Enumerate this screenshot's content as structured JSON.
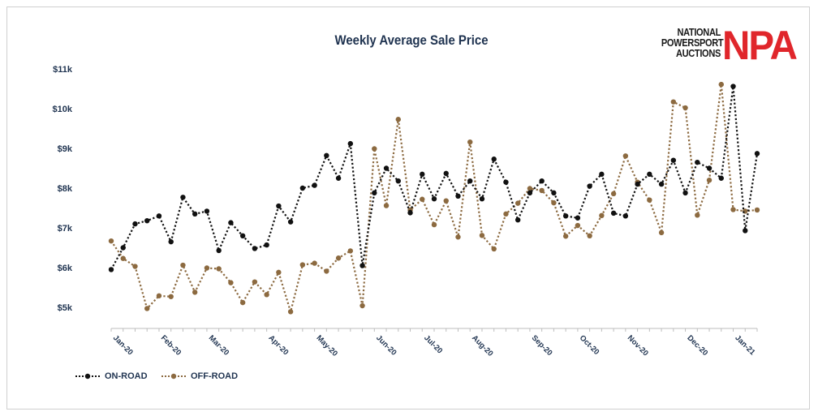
{
  "logo": {
    "line1": "NATIONAL",
    "line2": "POWERSPORT",
    "line3": "AUCTIONS",
    "mark": "NPA",
    "mark_color": "#e0262b"
  },
  "colors": {
    "on_road": "#111111",
    "off_road": "#8c6a40",
    "axis_text": "#1f3350"
  },
  "chart_data": {
    "type": "line",
    "title": "Weekly Average Sale Price",
    "xlabel": "",
    "ylabel": "",
    "ylim": [
      4700,
      11000
    ],
    "y_ticks": [
      {
        "value": 11000,
        "label": "$11k"
      },
      {
        "value": 10000,
        "label": "$10k"
      },
      {
        "value": 9000,
        "label": "$9k"
      },
      {
        "value": 8000,
        "label": "$8k"
      },
      {
        "value": 7000,
        "label": "$7k"
      },
      {
        "value": 6000,
        "label": "$6k"
      },
      {
        "value": 5000,
        "label": "$5k"
      }
    ],
    "x_ticks": [
      {
        "index": 0,
        "label": "Jan-20"
      },
      {
        "index": 4,
        "label": "Feb-20"
      },
      {
        "index": 8,
        "label": "Mar-20"
      },
      {
        "index": 13,
        "label": "Apr-20"
      },
      {
        "index": 17,
        "label": "May-20"
      },
      {
        "index": 22,
        "label": "Jun-20"
      },
      {
        "index": 26,
        "label": "Jul-20"
      },
      {
        "index": 30,
        "label": "Aug-20"
      },
      {
        "index": 35,
        "label": "Sep-20"
      },
      {
        "index": 39,
        "label": "Oct-20"
      },
      {
        "index": 43,
        "label": "Nov-20"
      },
      {
        "index": 48,
        "label": "Dec-20"
      },
      {
        "index": 52,
        "label": "Jan-21"
      }
    ],
    "num_points": 55,
    "grid": false,
    "legend": "bottom-left",
    "series": [
      {
        "name": "ON-ROAD",
        "color": "#111111",
        "values": [
          5950,
          6500,
          7100,
          7180,
          7300,
          6650,
          7770,
          7350,
          7420,
          6430,
          7130,
          6800,
          6480,
          6570,
          7550,
          7150,
          8000,
          8070,
          8820,
          8250,
          9120,
          6050,
          7880,
          8500,
          8180,
          7380,
          8350,
          7730,
          8370,
          7800,
          8180,
          7730,
          8730,
          8150,
          7200,
          7880,
          8180,
          7880,
          7300,
          7250,
          8050,
          8350,
          7370,
          7300,
          8100,
          8350,
          8100,
          8700,
          7880,
          8650,
          8500,
          8250,
          10560,
          6930,
          8870
        ]
      },
      {
        "name": "OFF-ROAD",
        "color": "#8c6a40",
        "values": [
          6670,
          6230,
          6030,
          4970,
          5290,
          5270,
          6060,
          5380,
          5990,
          5970,
          5620,
          5120,
          5640,
          5320,
          5880,
          4890,
          6070,
          6110,
          5910,
          6240,
          6420,
          5040,
          8990,
          7560,
          9730,
          7450,
          7720,
          7080,
          7680,
          6770,
          9160,
          6810,
          6470,
          7350,
          7620,
          7990,
          7940,
          7630,
          6790,
          7060,
          6800,
          7310,
          7860,
          8810,
          8150,
          7700,
          6880,
          10170,
          10020,
          7320,
          8200,
          10610,
          7460,
          7420,
          7450
        ]
      }
    ]
  }
}
